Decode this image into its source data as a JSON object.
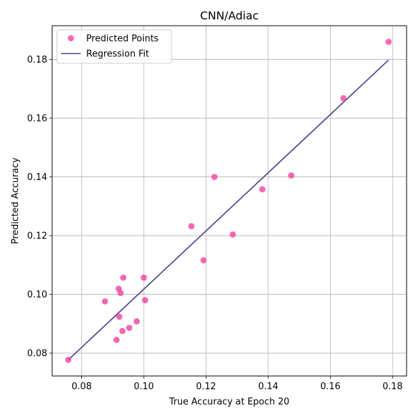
{
  "chart_data": {
    "type": "scatter",
    "title": "CNN/Adiac",
    "xlabel": "True Accuracy at Epoch 20",
    "ylabel": "Predicted Accuracy",
    "xlim": [
      0.0705,
      0.1845
    ],
    "ylim": [
      0.0722,
      0.1915
    ],
    "xticks": [
      "0.08",
      "0.10",
      "0.12",
      "0.14",
      "0.16",
      "0.18"
    ],
    "xtick_values": [
      0.08,
      0.1,
      0.12,
      0.14,
      0.16,
      0.18
    ],
    "yticks": [
      "0.08",
      "0.10",
      "0.12",
      "0.14",
      "0.16",
      "0.18"
    ],
    "ytick_values": [
      0.08,
      0.1,
      0.12,
      0.14,
      0.16,
      0.18
    ],
    "grid": true,
    "legend_position": "upper-left",
    "series": [
      {
        "name": "Predicted Points",
        "kind": "scatter",
        "color": "#f0449f",
        "points": [
          {
            "x": 0.0757,
            "y": 0.0777
          },
          {
            "x": 0.0875,
            "y": 0.0976
          },
          {
            "x": 0.0912,
            "y": 0.0845
          },
          {
            "x": 0.0919,
            "y": 0.1019
          },
          {
            "x": 0.0921,
            "y": 0.0924
          },
          {
            "x": 0.0925,
            "y": 0.1005
          },
          {
            "x": 0.0931,
            "y": 0.0875
          },
          {
            "x": 0.0934,
            "y": 0.1057
          },
          {
            "x": 0.0953,
            "y": 0.0886
          },
          {
            "x": 0.0977,
            "y": 0.0908
          },
          {
            "x": 0.1,
            "y": 0.1057
          },
          {
            "x": 0.1004,
            "y": 0.098
          },
          {
            "x": 0.1153,
            "y": 0.1232
          },
          {
            "x": 0.1192,
            "y": 0.1116
          },
          {
            "x": 0.1227,
            "y": 0.14
          },
          {
            "x": 0.1286,
            "y": 0.1204
          },
          {
            "x": 0.1381,
            "y": 0.1358
          },
          {
            "x": 0.1474,
            "y": 0.1405
          },
          {
            "x": 0.1642,
            "y": 0.1668
          },
          {
            "x": 0.1787,
            "y": 0.186
          }
        ]
      },
      {
        "name": "Regression Fit",
        "kind": "line",
        "color": "#483d8b",
        "points": [
          {
            "x": 0.0757,
            "y": 0.0777
          },
          {
            "x": 0.1787,
            "y": 0.1798
          }
        ]
      }
    ]
  }
}
